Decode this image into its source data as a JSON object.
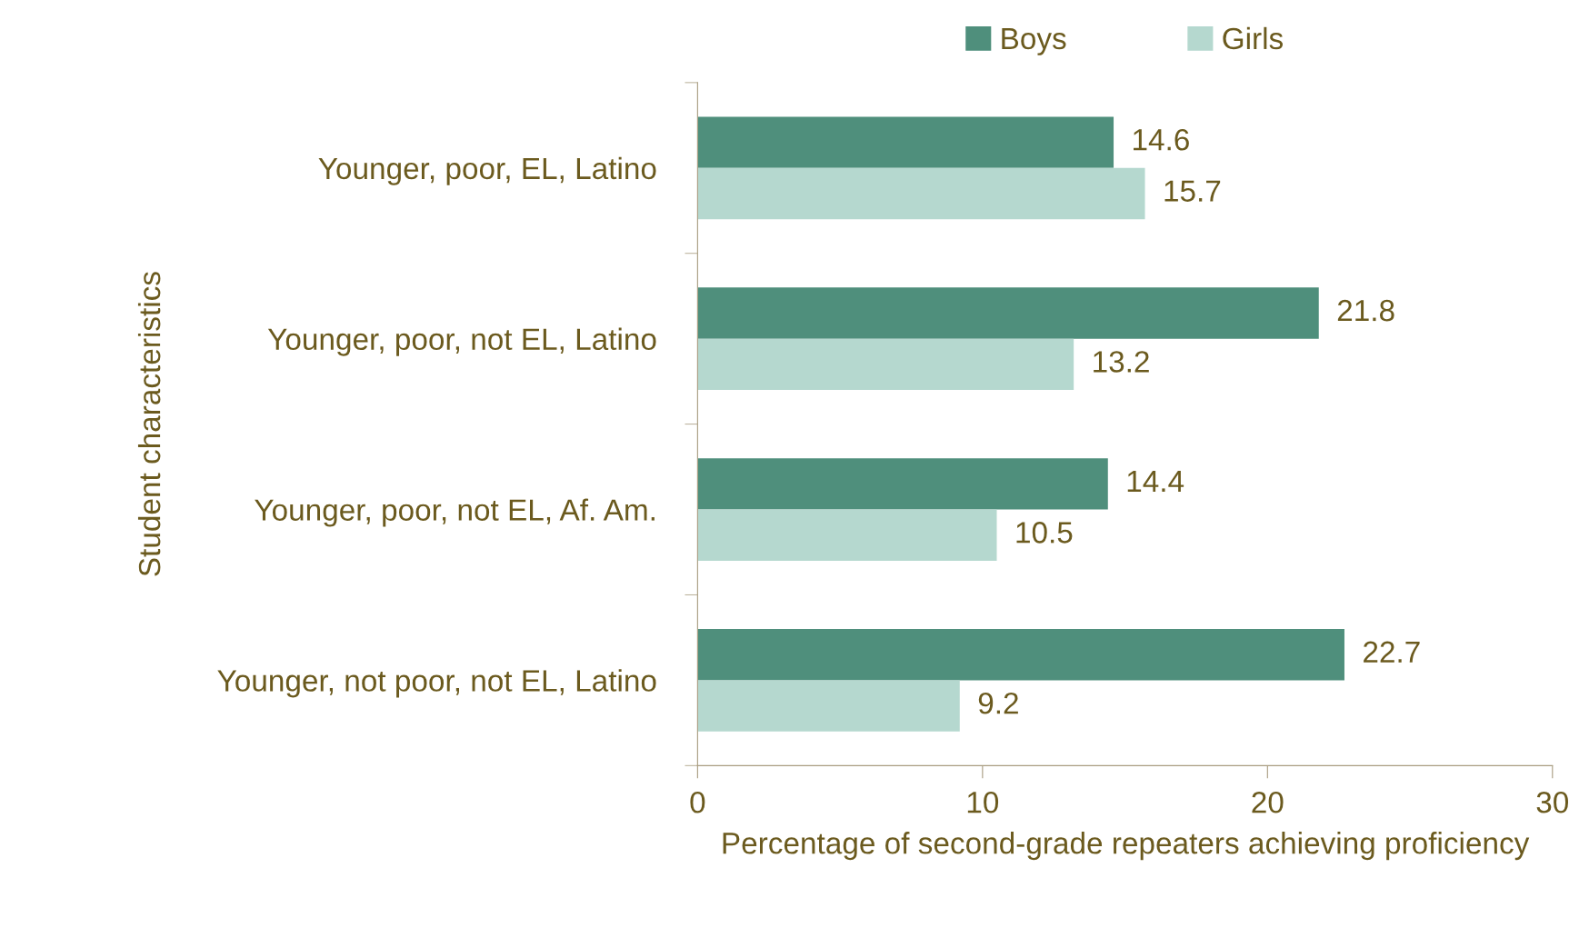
{
  "chart_data": {
    "type": "bar",
    "orientation": "horizontal",
    "categories": [
      "Younger, poor, EL, Latino",
      "Younger, poor, not EL, Latino",
      "Younger, poor, not EL, Af. Am.",
      "Younger, not poor, not EL, Latino"
    ],
    "series": [
      {
        "name": "Boys",
        "color": "#4f8f7c",
        "values": [
          14.6,
          21.8,
          14.4,
          22.7
        ]
      },
      {
        "name": "Girls",
        "color": "#b5d8cf",
        "values": [
          15.7,
          13.2,
          10.5,
          9.2
        ]
      }
    ],
    "xlabel": "Percentage of second-grade repeaters achieving proficiency",
    "ylabel": "Student characteristics",
    "xlim": [
      0,
      30
    ],
    "xticks": [
      0,
      10,
      20,
      30
    ],
    "data_labels": true,
    "legend": "top",
    "grid": false
  }
}
